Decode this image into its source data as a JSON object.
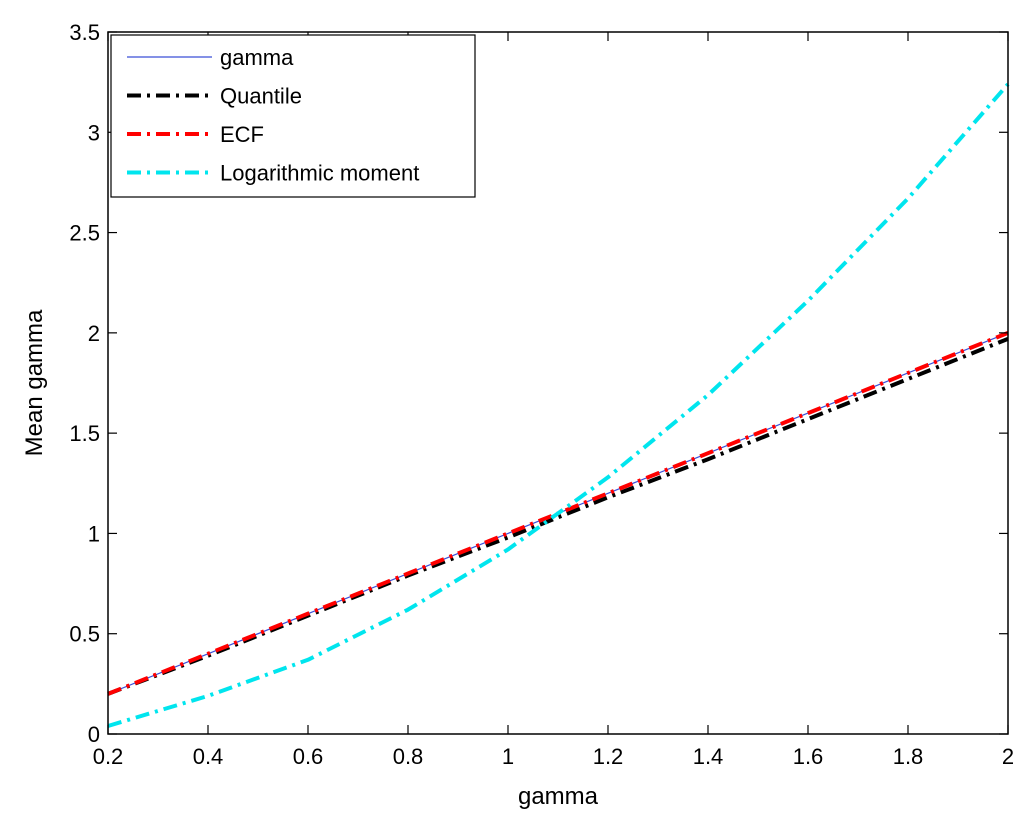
{
  "chart_data": {
    "type": "line",
    "xlabel": "gamma",
    "ylabel": "Mean gamma",
    "xlim": [
      0.2,
      2
    ],
    "ylim": [
      0,
      3.5
    ],
    "xticks": [
      0.2,
      0.4,
      0.6,
      0.8,
      1,
      1.2,
      1.4,
      1.6,
      1.8,
      2
    ],
    "xtick_labels": [
      "0.2",
      "0.4",
      "0.6",
      "0.8",
      "1",
      "1.2",
      "1.4",
      "1.6",
      "1.8",
      "2"
    ],
    "yticks": [
      0,
      0.5,
      1,
      1.5,
      2,
      2.5,
      3,
      3.5
    ],
    "ytick_labels": [
      "0",
      "0.5",
      "1",
      "1.5",
      "2",
      "2.5",
      "3",
      "3.5"
    ],
    "legend_position": "top-left",
    "grid": false,
    "series": [
      {
        "name": "gamma",
        "color": "#3b4fd8",
        "style": "solid",
        "x": [
          0.2,
          0.4,
          0.6,
          0.8,
          1.0,
          1.2,
          1.4,
          1.6,
          1.8,
          2.0
        ],
        "y": [
          0.2,
          0.4,
          0.6,
          0.8,
          1.0,
          1.2,
          1.4,
          1.6,
          1.8,
          2.0
        ]
      },
      {
        "name": "Quantile",
        "color": "#000000",
        "style": "dashdot",
        "x": [
          0.2,
          0.4,
          0.6,
          0.8,
          1.0,
          1.2,
          1.4,
          1.6,
          1.8,
          2.0
        ],
        "y": [
          0.2,
          0.39,
          0.59,
          0.79,
          0.98,
          1.18,
          1.37,
          1.57,
          1.77,
          1.97
        ]
      },
      {
        "name": "ECF",
        "color": "#ff0000",
        "style": "dashdot",
        "x": [
          0.2,
          0.4,
          0.6,
          0.8,
          1.0,
          1.2,
          1.4,
          1.6,
          1.8,
          2.0
        ],
        "y": [
          0.2,
          0.4,
          0.6,
          0.8,
          1.0,
          1.2,
          1.4,
          1.6,
          1.8,
          2.0
        ]
      },
      {
        "name": "Logarithmic moment",
        "color": "#00e5ee",
        "style": "dashdot",
        "x": [
          0.2,
          0.4,
          0.6,
          0.8,
          1.0,
          1.2,
          1.4,
          1.6,
          1.8,
          2.0
        ],
        "y": [
          0.04,
          0.19,
          0.37,
          0.62,
          0.92,
          1.28,
          1.69,
          2.16,
          2.67,
          3.24
        ]
      }
    ]
  }
}
